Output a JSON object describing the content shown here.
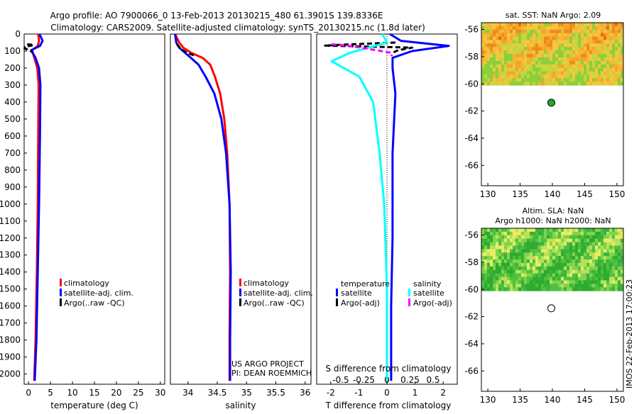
{
  "header": {
    "line1": "Argo profile: AO 7900066_0 13-Feb-2013 20130215_480 61.3901S 139.8336E",
    "line2": "Climatology: CARS2009. Satellite-adjusted climatology: synTS_20130215.nc (1.8d later)"
  },
  "colors": {
    "climatology": "#ff0000",
    "satellite": "#0000ff",
    "argo": "#000000",
    "cyan": "#00ffff",
    "magenta": "#ff00ff"
  },
  "credits": {
    "project": "US ARGO PROJECT",
    "pi": "PI: DEAN ROEMMICH",
    "stamp": "IMOS 22-Feb-2013 17:00:23"
  },
  "chart_data": [
    {
      "type": "line",
      "id": "temperature",
      "xlabel": "temperature (deg C)",
      "xlim": [
        -1,
        31
      ],
      "ylim": [
        2060,
        0
      ],
      "xticks": [
        "0",
        "5",
        "10",
        "15",
        "20",
        "25",
        "30"
      ],
      "yticks": [
        "0",
        "100",
        "200",
        "300",
        "400",
        "500",
        "600",
        "700",
        "800",
        "900",
        "1000",
        "1100",
        "1200",
        "1300",
        "1400",
        "1500",
        "1600",
        "1700",
        "1800",
        "1900",
        "2000"
      ],
      "legend": [
        "climatology",
        "satellite-adj. clim.",
        "Argo(..raw -QC)"
      ],
      "series": [
        {
          "name": "climatology",
          "color": "#ff0000",
          "points": [
            [
              2.2,
              0
            ],
            [
              2.4,
              40
            ],
            [
              2.1,
              70
            ],
            [
              0.8,
              95
            ],
            [
              1.2,
              130
            ],
            [
              2.0,
              200
            ],
            [
              2.3,
              300
            ],
            [
              2.2,
              600
            ],
            [
              2.1,
              1000
            ],
            [
              1.9,
              1400
            ],
            [
              1.6,
              1800
            ],
            [
              1.3,
              2040
            ]
          ]
        },
        {
          "name": "satellite-adj. clim.",
          "color": "#0000ff",
          "points": [
            [
              2.5,
              0
            ],
            [
              3.2,
              40
            ],
            [
              2.6,
              70
            ],
            [
              0.6,
              95
            ],
            [
              1.6,
              140
            ],
            [
              2.4,
              200
            ],
            [
              2.7,
              300
            ],
            [
              2.6,
              600
            ],
            [
              2.4,
              1000
            ],
            [
              2.1,
              1400
            ],
            [
              1.8,
              1800
            ],
            [
              1.4,
              2040
            ]
          ]
        },
        {
          "name": "Argo(..raw -QC)",
          "color": "#000000",
          "dashed": true,
          "points": [
            [
              -0.3,
              60
            ],
            [
              1.2,
              65
            ],
            [
              -0.8,
              75
            ],
            [
              -0.9,
              85
            ],
            [
              0.3,
              95
            ],
            [
              1.0,
              110
            ]
          ]
        }
      ]
    },
    {
      "type": "line",
      "id": "salinity",
      "xlabel": "salinity",
      "xlim": [
        33.7,
        36.1
      ],
      "ylim": [
        2060,
        0
      ],
      "xticks": [
        "34",
        "34.5",
        "35",
        "35.5",
        "36"
      ],
      "legend": [
        "climatology",
        "satellite-adj. clim.",
        "Argo(..raw -QC)"
      ],
      "series": [
        {
          "name": "climatology",
          "color": "#ff0000",
          "points": [
            [
              33.78,
              0
            ],
            [
              33.85,
              50
            ],
            [
              33.92,
              80
            ],
            [
              34.05,
              110
            ],
            [
              34.25,
              140
            ],
            [
              34.38,
              180
            ],
            [
              34.46,
              250
            ],
            [
              34.55,
              350
            ],
            [
              34.62,
              500
            ],
            [
              34.67,
              700
            ],
            [
              34.71,
              1000
            ],
            [
              34.72,
              1400
            ],
            [
              34.71,
              1800
            ],
            [
              34.71,
              2040
            ]
          ]
        },
        {
          "name": "satellite-adj. clim.",
          "color": "#0000ff",
          "points": [
            [
              33.78,
              0
            ],
            [
              33.8,
              50
            ],
            [
              33.85,
              80
            ],
            [
              33.95,
              110
            ],
            [
              34.05,
              140
            ],
            [
              34.18,
              180
            ],
            [
              34.3,
              250
            ],
            [
              34.45,
              350
            ],
            [
              34.57,
              500
            ],
            [
              34.65,
              700
            ],
            [
              34.71,
              1000
            ],
            [
              34.73,
              1400
            ],
            [
              34.72,
              1800
            ],
            [
              34.72,
              2040
            ]
          ]
        },
        {
          "name": "Argo(..raw -QC)",
          "color": "#000000",
          "dashed": true,
          "points": [
            [
              33.81,
              60
            ],
            [
              33.86,
              80
            ],
            [
              33.93,
              100
            ],
            [
              34.02,
              115
            ],
            [
              34.1,
              125
            ]
          ]
        }
      ]
    },
    {
      "type": "line",
      "id": "differences",
      "xlabel": "T difference from climatology",
      "x2label": "S difference from climatology",
      "xlim": [
        -2.5,
        2.5
      ],
      "ylim": [
        2060,
        0
      ],
      "xticks": [
        "-2",
        "-1",
        "0",
        "1",
        "2"
      ],
      "x2ticks": [
        "-0.5",
        "-0.25",
        "0",
        "0.25",
        "0.5"
      ],
      "legend_left_title": "temperature",
      "legend_right_title": "salinity",
      "legend_left": [
        "satellite",
        "Argo(-adj)"
      ],
      "legend_right": [
        "satellite",
        "Argo(-adj)"
      ],
      "series": [
        {
          "name": "T satellite",
          "color": "#0000ff",
          "points": [
            [
              0.1,
              0
            ],
            [
              0.5,
              40
            ],
            [
              2.2,
              70
            ],
            [
              0.9,
              100
            ],
            [
              0.2,
              140
            ],
            [
              0.2,
              200
            ],
            [
              0.3,
              350
            ],
            [
              0.2,
              700
            ],
            [
              0.2,
              1200
            ],
            [
              0.15,
              1600
            ],
            [
              0.15,
              2040
            ]
          ]
        },
        {
          "name": "T Argo(-adj)",
          "color": "#000000",
          "dashed": true,
          "points": [
            [
              0.3,
              50
            ],
            [
              -1.5,
              62
            ],
            [
              -2.2,
              68
            ],
            [
              -0.4,
              75
            ],
            [
              0.9,
              80
            ],
            [
              0.4,
              95
            ],
            [
              0.2,
              110
            ]
          ]
        },
        {
          "name": "S satellite",
          "color": "#00ffff",
          "points": [
            [
              -0.05,
              0
            ],
            [
              0.0,
              50
            ],
            [
              -0.4,
              110
            ],
            [
              -0.6,
              160
            ],
            [
              -0.3,
              250
            ],
            [
              -0.15,
              400
            ],
            [
              -0.08,
              700
            ],
            [
              -0.03,
              1000
            ],
            [
              0.0,
              1500
            ],
            [
              0.0,
              2040
            ]
          ]
        },
        {
          "name": "S Argo(-adj)",
          "color": "#ff00ff",
          "dashed": true,
          "points": [
            [
              -0.6,
              60
            ],
            [
              -0.4,
              70
            ],
            [
              0.05,
              110
            ],
            [
              0.05,
              130
            ]
          ]
        }
      ]
    },
    {
      "type": "heatmap",
      "id": "sst-map",
      "title": "sat. SST: NaN Argo: 2.09",
      "xlim": [
        129,
        151
      ],
      "ylim": [
        -67.5,
        -55.5
      ],
      "xticks": [
        "130",
        "135",
        "140",
        "145",
        "150"
      ],
      "yticks": [
        "-56",
        "-58",
        "-60",
        "-62",
        "-64",
        "-66"
      ],
      "data_extent_lat": [
        -60.1,
        -55.5
      ],
      "float_position": [
        139.8336,
        -61.3901
      ]
    },
    {
      "type": "heatmap",
      "id": "sla-map",
      "title": "Altim. SLA: NaN",
      "subtitle": "Argo h1000: NaN h2000: NaN",
      "xlim": [
        129,
        151
      ],
      "ylim": [
        -67.5,
        -55.5
      ],
      "xticks": [
        "130",
        "135",
        "140",
        "145",
        "150"
      ],
      "yticks": [
        "-56",
        "-58",
        "-60",
        "-62",
        "-64",
        "-66"
      ],
      "data_extent_lat": [
        -60.1,
        -55.5
      ],
      "float_position": [
        139.8336,
        -61.3901
      ]
    }
  ]
}
